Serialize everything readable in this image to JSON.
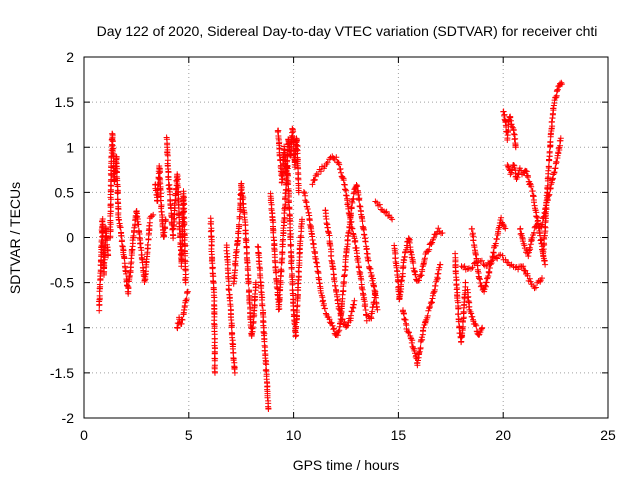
{
  "chart_data": {
    "type": "scatter",
    "title": "Day 122 of 2020, Sidereal Day-to-day VTEC variation (SDTVAR) for receiver chti",
    "xlabel": "GPS time / hours",
    "ylabel": "SDTVAR / TECUs",
    "xlim": [
      0,
      25
    ],
    "ylim": [
      -2,
      2
    ],
    "xticks": [
      0,
      5,
      10,
      15,
      20,
      25
    ],
    "yticks": [
      -2,
      -1.5,
      -1,
      -0.5,
      0,
      0.5,
      1,
      1.5,
      2
    ],
    "xtick_labels": [
      "0",
      "5",
      "10",
      "15",
      "20",
      "25"
    ],
    "ytick_labels": [
      "-2",
      "-1.5",
      "-1",
      "-0.5",
      "0",
      "0.5",
      "1",
      "1.5",
      "2"
    ],
    "grid": true,
    "marker": "+",
    "marker_color": "#ff0000",
    "series": [
      {
        "name": "SDTVAR",
        "tracks": [
          [
            [
              0.72,
              -0.8
            ],
            [
              0.8,
              -0.3
            ],
            [
              0.88,
              0.2
            ],
            [
              0.95,
              -0.4
            ],
            [
              1.05,
              0.1
            ],
            [
              1.15,
              -0.2
            ]
          ],
          [
            [
              1.25,
              0.0
            ],
            [
              1.3,
              0.8
            ],
            [
              1.35,
              1.15
            ],
            [
              1.45,
              0.6
            ],
            [
              1.55,
              0.9
            ],
            [
              1.65,
              0.2
            ],
            [
              1.8,
              0.0
            ],
            [
              1.95,
              -0.3
            ],
            [
              2.1,
              -0.6
            ],
            [
              2.2,
              -0.4
            ],
            [
              2.35,
              0.0
            ],
            [
              2.5,
              0.3
            ],
            [
              2.6,
              0.1
            ],
            [
              2.75,
              -0.2
            ],
            [
              2.9,
              -0.5
            ],
            [
              3.0,
              -0.2
            ],
            [
              3.15,
              0.2
            ],
            [
              3.3,
              0.25
            ]
          ],
          [
            [
              3.4,
              0.6
            ],
            [
              3.5,
              0.4
            ],
            [
              3.6,
              0.8
            ],
            [
              3.7,
              0.3
            ],
            [
              3.8,
              0.0
            ],
            [
              3.9,
              0.2
            ]
          ],
          [
            [
              3.95,
              1.1
            ],
            [
              4.05,
              0.6
            ],
            [
              4.15,
              0.3
            ],
            [
              4.25,
              0.0
            ],
            [
              4.35,
              0.4
            ],
            [
              4.45,
              0.7
            ],
            [
              4.55,
              0.2
            ],
            [
              4.65,
              -0.3
            ],
            [
              4.75,
              0.5
            ],
            [
              4.85,
              -0.5
            ]
          ],
          [
            [
              4.45,
              -1.0
            ],
            [
              4.55,
              -0.9
            ],
            [
              4.65,
              -0.95
            ],
            [
              4.75,
              -0.85
            ],
            [
              4.85,
              -0.7
            ],
            [
              4.95,
              -0.6
            ]
          ],
          [
            [
              6.05,
              0.2
            ],
            [
              6.1,
              -0.2
            ],
            [
              6.15,
              -0.4
            ],
            [
              6.2,
              -0.6
            ],
            [
              6.25,
              -1.5
            ]
          ],
          [
            [
              6.8,
              -0.1
            ],
            [
              6.9,
              -0.5
            ],
            [
              7.0,
              -0.8
            ],
            [
              7.1,
              -1.2
            ],
            [
              7.2,
              -1.5
            ]
          ],
          [
            [
              7.15,
              -0.5
            ],
            [
              7.25,
              -0.2
            ],
            [
              7.35,
              0.0
            ],
            [
              7.45,
              0.3
            ],
            [
              7.5,
              0.6
            ],
            [
              7.6,
              0.4
            ],
            [
              7.7,
              0.1
            ],
            [
              7.8,
              -0.3
            ],
            [
              7.9,
              -0.7
            ],
            [
              8.0,
              -1.1
            ],
            [
              8.1,
              -0.9
            ],
            [
              8.2,
              -0.5
            ]
          ],
          [
            [
              8.3,
              -0.1
            ],
            [
              8.4,
              -0.4
            ],
            [
              8.5,
              -0.7
            ],
            [
              8.6,
              -1.1
            ],
            [
              8.7,
              -1.5
            ],
            [
              8.8,
              -1.9
            ]
          ],
          [
            [
              8.9,
              0.5
            ],
            [
              9.0,
              0.2
            ],
            [
              9.1,
              -0.2
            ],
            [
              9.2,
              -0.5
            ],
            [
              9.3,
              -0.8
            ],
            [
              9.4,
              -0.4
            ],
            [
              9.5,
              0.0
            ],
            [
              9.6,
              0.4
            ],
            [
              9.7,
              0.8
            ],
            [
              9.8,
              0.3
            ],
            [
              9.9,
              -0.3
            ],
            [
              10.0,
              -0.8
            ],
            [
              10.1,
              -1.1
            ],
            [
              10.2,
              -0.6
            ],
            [
              10.3,
              -0.1
            ],
            [
              10.4,
              0.2
            ]
          ],
          [
            [
              9.25,
              1.2
            ],
            [
              9.35,
              0.9
            ],
            [
              9.45,
              0.6
            ],
            [
              9.55,
              1.0
            ],
            [
              9.65,
              0.7
            ],
            [
              9.75,
              1.1
            ],
            [
              9.85,
              0.9
            ],
            [
              9.95,
              1.2
            ],
            [
              10.05,
              0.8
            ],
            [
              10.15,
              1.1
            ],
            [
              10.25,
              0.5
            ]
          ],
          [
            [
              10.5,
              0.5
            ],
            [
              10.7,
              0.3
            ],
            [
              10.9,
              0.0
            ],
            [
              11.1,
              -0.3
            ],
            [
              11.3,
              -0.6
            ],
            [
              11.5,
              -0.8
            ],
            [
              11.7,
              -0.9
            ],
            [
              11.9,
              -1.0
            ],
            [
              12.05,
              -1.1
            ],
            [
              12.2,
              -1.0
            ],
            [
              12.4,
              -0.5
            ],
            [
              12.6,
              0.0
            ],
            [
              12.8,
              0.4
            ],
            [
              13.0,
              0.6
            ],
            [
              13.2,
              0.3
            ],
            [
              13.4,
              0.0
            ],
            [
              13.6,
              -0.3
            ],
            [
              13.8,
              -0.5
            ],
            [
              14.0,
              -0.8
            ]
          ],
          [
            [
              10.9,
              0.6
            ],
            [
              11.1,
              0.7
            ],
            [
              11.3,
              0.75
            ],
            [
              11.5,
              0.8
            ],
            [
              11.7,
              0.85
            ],
            [
              11.9,
              0.9
            ],
            [
              12.1,
              0.85
            ],
            [
              12.3,
              0.7
            ],
            [
              12.5,
              0.5
            ],
            [
              12.7,
              0.2
            ],
            [
              12.9,
              0.0
            ],
            [
              13.1,
              -0.3
            ],
            [
              13.3,
              -0.6
            ],
            [
              13.5,
              -0.9
            ],
            [
              13.7,
              -0.9
            ],
            [
              13.9,
              -0.6
            ]
          ],
          [
            [
              11.5,
              0.3
            ],
            [
              11.7,
              0.0
            ],
            [
              11.9,
              -0.4
            ],
            [
              12.1,
              -0.7
            ],
            [
              12.3,
              -0.9
            ],
            [
              12.5,
              -1.0
            ],
            [
              12.7,
              -0.9
            ],
            [
              12.9,
              -0.7
            ]
          ],
          [
            [
              13.9,
              0.4
            ],
            [
              14.1,
              0.35
            ],
            [
              14.3,
              0.3
            ],
            [
              14.5,
              0.25
            ],
            [
              14.7,
              0.2
            ]
          ],
          [
            [
              14.8,
              -0.1
            ],
            [
              14.95,
              -0.4
            ],
            [
              15.05,
              -0.7
            ],
            [
              15.15,
              -0.5
            ],
            [
              15.3,
              -0.2
            ],
            [
              15.5,
              0.0
            ],
            [
              15.7,
              -0.3
            ],
            [
              15.9,
              -0.5
            ],
            [
              16.1,
              -0.4
            ],
            [
              16.3,
              -0.2
            ],
            [
              16.5,
              -0.1
            ],
            [
              16.7,
              0.0
            ],
            [
              16.9,
              0.1
            ],
            [
              17.1,
              0.05
            ]
          ],
          [
            [
              15.2,
              -0.8
            ],
            [
              15.4,
              -1.0
            ],
            [
              15.6,
              -1.1
            ],
            [
              15.75,
              -1.25
            ],
            [
              15.9,
              -1.4
            ],
            [
              16.05,
              -1.2
            ],
            [
              16.2,
              -1.0
            ],
            [
              16.4,
              -0.85
            ],
            [
              16.6,
              -0.7
            ],
            [
              16.8,
              -0.5
            ],
            [
              17.0,
              -0.3
            ]
          ],
          [
            [
              17.7,
              -0.2
            ],
            [
              17.8,
              -0.6
            ],
            [
              17.9,
              -1.0
            ],
            [
              18.0,
              -1.15
            ],
            [
              18.1,
              -0.9
            ],
            [
              18.2,
              -0.5
            ]
          ],
          [
            [
              18.3,
              -0.6
            ],
            [
              18.4,
              -0.8
            ],
            [
              18.55,
              -0.9
            ],
            [
              18.7,
              -1.0
            ],
            [
              18.85,
              -1.1
            ],
            [
              19.0,
              -1.0
            ]
          ],
          [
            [
              18.0,
              -0.3
            ],
            [
              18.3,
              -0.35
            ],
            [
              18.6,
              -0.3
            ],
            [
              18.9,
              -0.25
            ],
            [
              19.2,
              -0.3
            ],
            [
              19.5,
              -0.25
            ],
            [
              19.8,
              -0.2
            ],
            [
              20.1,
              -0.25
            ],
            [
              20.4,
              -0.3
            ]
          ],
          [
            [
              18.5,
              0.1
            ],
            [
              18.7,
              -0.2
            ],
            [
              18.9,
              -0.5
            ],
            [
              19.1,
              -0.6
            ],
            [
              19.3,
              -0.4
            ],
            [
              19.5,
              -0.2
            ],
            [
              19.7,
              0.0
            ],
            [
              19.9,
              0.2
            ],
            [
              20.1,
              0.1
            ]
          ],
          [
            [
              20.0,
              1.4
            ],
            [
              20.1,
              1.3
            ],
            [
              20.2,
              1.1
            ],
            [
              20.3,
              1.35
            ],
            [
              20.4,
              1.25
            ],
            [
              20.5,
              1.2
            ],
            [
              20.6,
              1.0
            ]
          ],
          [
            [
              20.2,
              0.8
            ],
            [
              20.35,
              0.7
            ],
            [
              20.5,
              0.8
            ],
            [
              20.65,
              0.65
            ],
            [
              20.8,
              0.75
            ],
            [
              20.95,
              0.7
            ],
            [
              21.1,
              0.75
            ],
            [
              21.25,
              0.6
            ],
            [
              21.4,
              0.5
            ],
            [
              21.55,
              0.3
            ],
            [
              21.7,
              0.1
            ],
            [
              21.85,
              -0.1
            ],
            [
              22.0,
              -0.3
            ]
          ],
          [
            [
              20.5,
              -0.3
            ],
            [
              20.7,
              -0.35
            ],
            [
              20.9,
              -0.3
            ],
            [
              21.1,
              -0.4
            ],
            [
              21.3,
              -0.5
            ],
            [
              21.5,
              -0.55
            ],
            [
              21.7,
              -0.5
            ],
            [
              21.85,
              -0.45
            ]
          ],
          [
            [
              20.8,
              0.1
            ],
            [
              21.0,
              -0.1
            ],
            [
              21.2,
              -0.2
            ],
            [
              21.4,
              0.0
            ],
            [
              21.6,
              0.15
            ],
            [
              21.8,
              0.1
            ],
            [
              22.0,
              0.3
            ],
            [
              22.2,
              0.5
            ],
            [
              22.4,
              0.7
            ],
            [
              22.6,
              0.9
            ],
            [
              22.75,
              1.1
            ]
          ],
          [
            [
              21.9,
              -0.2
            ],
            [
              22.0,
              0.1
            ],
            [
              22.1,
              0.5
            ],
            [
              22.2,
              0.9
            ],
            [
              22.3,
              1.2
            ],
            [
              22.4,
              1.45
            ],
            [
              22.5,
              1.55
            ],
            [
              22.6,
              1.65
            ],
            [
              22.7,
              1.7
            ],
            [
              22.8,
              1.7
            ]
          ]
        ]
      }
    ]
  }
}
